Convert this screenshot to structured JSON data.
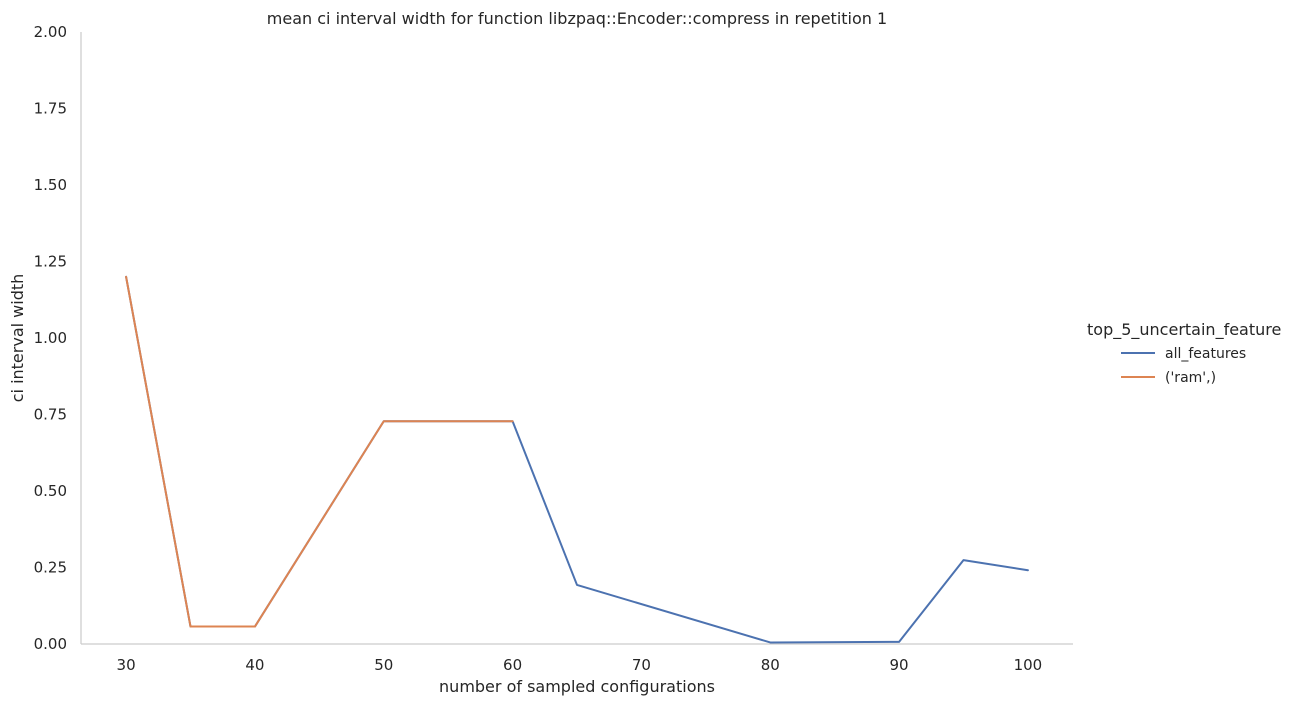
{
  "chart_data": {
    "type": "line",
    "title": "mean ci interval width for function libzpaq::Encoder::compress in repetition 1",
    "xlabel": "number of sampled configurations",
    "ylabel": "ci interval width",
    "xlim": [
      26.5,
      103.5
    ],
    "ylim": [
      0,
      2.0
    ],
    "xticks": [
      30,
      40,
      50,
      60,
      70,
      80,
      90,
      100
    ],
    "yticks": [
      0.0,
      0.25,
      0.5,
      0.75,
      1.0,
      1.25,
      1.5,
      1.75,
      2.0
    ],
    "ytick_labels": [
      "0.00",
      "0.25",
      "0.50",
      "0.75",
      "1.00",
      "1.25",
      "1.50",
      "1.75",
      "2.00"
    ],
    "grid": false,
    "legend": {
      "title": "top_5_uncertain_feature",
      "placement": "right"
    },
    "series": [
      {
        "name": "all_features",
        "color": "#4c72b0",
        "x": [
          30,
          35,
          40,
          50,
          60,
          65,
          80,
          90,
          95,
          100
        ],
        "values": [
          1.2,
          0.057,
          0.057,
          0.728,
          0.728,
          0.193,
          0.005,
          0.007,
          0.274,
          0.241
        ]
      },
      {
        "name": "('ram',)",
        "color": "#dd8452",
        "x": [
          30,
          35,
          40,
          50,
          60
        ],
        "values": [
          1.2,
          0.057,
          0.057,
          0.728,
          0.728
        ]
      }
    ]
  }
}
